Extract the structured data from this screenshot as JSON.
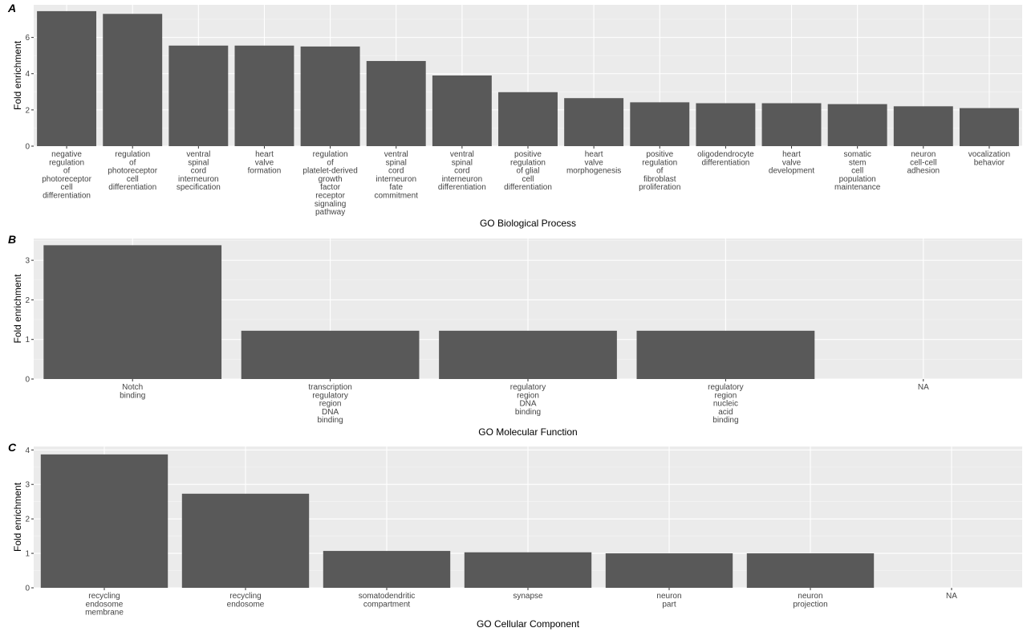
{
  "chart_data": [
    {
      "type": "bar",
      "panel_label": "A",
      "xlabel": "GO Biological Process",
      "ylabel": "Fold enrichment",
      "ylim": [
        0,
        7.8
      ],
      "yticks": [
        0,
        2,
        4,
        6
      ],
      "grid": true,
      "bar_color": "#595959",
      "categories": [
        "negative regulation of photoreceptor cell differentiation",
        "regulation of photoreceptor cell differentiation",
        "ventral spinal cord interneuron specification",
        "heart valve formation",
        "regulation of platelet-derived growth factor receptor signaling pathway",
        "ventral spinal cord interneuron fate commitment",
        "ventral spinal cord interneuron differentiation",
        "positive regulation of glial cell differentiation",
        "heart valve morphogenesis",
        "positive regulation of fibroblast proliferation",
        "oligodendrocyte differentiation",
        "heart valve development",
        "somatic stem cell population maintenance",
        "neuron cell-cell adhesion",
        "vocalization behavior"
      ],
      "category_lines": [
        [
          "negative",
          "regulation",
          "of",
          "photoreceptor",
          "cell",
          "differentiation"
        ],
        [
          "regulation",
          "of",
          "photoreceptor",
          "cell",
          "differentiation"
        ],
        [
          "ventral",
          "spinal",
          "cord",
          "interneuron",
          "specification"
        ],
        [
          "heart",
          "valve",
          "formation"
        ],
        [
          "regulation",
          "of",
          "platelet-derived",
          "growth",
          "factor",
          "receptor",
          "signaling",
          "pathway"
        ],
        [
          "ventral",
          "spinal",
          "cord",
          "interneuron",
          "fate",
          "commitment"
        ],
        [
          "ventral",
          "spinal",
          "cord",
          "interneuron",
          "differentiation"
        ],
        [
          "positive",
          "regulation",
          "of glial",
          "cell",
          "differentiation"
        ],
        [
          "heart",
          "valve",
          "morphogenesis"
        ],
        [
          "positive",
          "regulation",
          "of",
          "fibroblast",
          "proliferation"
        ],
        [
          "oligodendrocyte",
          "differentiation"
        ],
        [
          "heart",
          "valve",
          "development"
        ],
        [
          "somatic",
          "stem",
          "cell",
          "population",
          "maintenance"
        ],
        [
          "neuron",
          "cell-cell",
          "adhesion"
        ],
        [
          "vocalization",
          "behavior"
        ]
      ],
      "values": [
        7.45,
        7.3,
        5.55,
        5.55,
        5.5,
        4.7,
        3.9,
        2.98,
        2.65,
        2.42,
        2.37,
        2.37,
        2.32,
        2.2,
        2.1
      ]
    },
    {
      "type": "bar",
      "panel_label": "B",
      "xlabel": "GO Molecular Function",
      "ylabel": "Fold enrichment",
      "ylim": [
        0,
        3.55
      ],
      "yticks": [
        0,
        1,
        2,
        3
      ],
      "grid": true,
      "bar_color": "#595959",
      "categories": [
        "Notch binding",
        "transcription regulatory region DNA binding",
        "regulatory region DNA binding",
        "regulatory region nucleic acid binding",
        "NA"
      ],
      "category_lines": [
        [
          "Notch",
          "binding"
        ],
        [
          "transcription",
          "regulatory",
          "region",
          "DNA",
          "binding"
        ],
        [
          "regulatory",
          "region",
          "DNA",
          "binding"
        ],
        [
          "regulatory",
          "region",
          "nucleic",
          "acid",
          "binding"
        ],
        [
          "NA"
        ]
      ],
      "values": [
        3.38,
        1.22,
        1.22,
        1.22,
        0
      ]
    },
    {
      "type": "bar",
      "panel_label": "C",
      "xlabel": "GO Cellular Component",
      "ylabel": "Fold enrichment",
      "ylim": [
        0,
        4.1
      ],
      "yticks": [
        0,
        1,
        2,
        3,
        4
      ],
      "grid": true,
      "bar_color": "#595959",
      "categories": [
        "recycling endosome membrane",
        "recycling endosome",
        "somatodendritic compartment",
        "synapse",
        "neuron part",
        "neuron projection",
        "NA"
      ],
      "category_lines": [
        [
          "recycling",
          "endosome",
          "membrane"
        ],
        [
          "recycling",
          "endosome"
        ],
        [
          "somatodendritic",
          "compartment"
        ],
        [
          "synapse"
        ],
        [
          "neuron",
          "part"
        ],
        [
          "neuron",
          "projection"
        ],
        [
          "NA"
        ]
      ],
      "values": [
        3.87,
        2.73,
        1.07,
        1.03,
        1.0,
        1.0,
        0
      ]
    }
  ]
}
